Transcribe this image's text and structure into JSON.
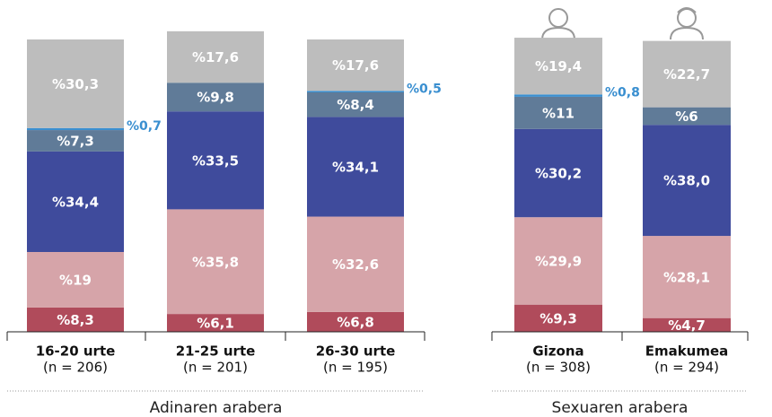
{
  "chart_data": [
    {
      "type": "stacked_bar",
      "group_label": "Adinaren arabera",
      "categories": [
        "16-20 urte",
        "21-25 urte",
        "26-30 urte"
      ],
      "subcategories": [
        "(n = 206)",
        "(n = 201)",
        "(n = 195)"
      ],
      "series": [
        {
          "color": "#b04b5b",
          "values": [
            8.3,
            6.1,
            6.8
          ],
          "value_labels": [
            "%8,3",
            "%6,1",
            "%6,8"
          ]
        },
        {
          "color": "#d6a4a9",
          "values": [
            19,
            35.8,
            32.6
          ],
          "value_labels": [
            "%19",
            "%35,8",
            "%32,6"
          ]
        },
        {
          "color": "#3f4b9c",
          "values": [
            34.4,
            33.5,
            34.1
          ],
          "value_labels": [
            "%34,4",
            "%33,5",
            "%34,1"
          ]
        },
        {
          "color": "#607b98",
          "values": [
            7.3,
            9.8,
            8.4
          ],
          "value_labels": [
            "%7,3",
            "%9,8",
            "%8,4"
          ]
        },
        {
          "color": "#3a8fd0",
          "values": [
            0.7,
            null,
            0.5
          ],
          "value_labels": [
            "%0,7",
            null,
            "%0,5"
          ]
        },
        {
          "color": "#bdbdbd",
          "values": [
            30.3,
            17.6,
            17.6
          ],
          "value_labels": [
            "%30,3",
            "%17,6",
            "%17,6"
          ]
        }
      ]
    },
    {
      "type": "stacked_bar",
      "group_label": "Sexuaren arabera",
      "categories": [
        "Gizona",
        "Emakumea"
      ],
      "subcategories": [
        "(n = 308)",
        "(n = 294)"
      ],
      "series": [
        {
          "color": "#b04b5b",
          "values": [
            9.3,
            4.7
          ],
          "value_labels": [
            "%9,3",
            "%4,7"
          ]
        },
        {
          "color": "#d6a4a9",
          "values": [
            29.9,
            28.1
          ],
          "value_labels": [
            "%29,9",
            "%28,1"
          ]
        },
        {
          "color": "#3f4b9c",
          "values": [
            30.2,
            38.0
          ],
          "value_labels": [
            "%30,2",
            "%38,0"
          ]
        },
        {
          "color": "#607b98",
          "values": [
            11,
            6
          ],
          "value_labels": [
            "%11",
            "%6"
          ]
        },
        {
          "color": "#3a8fd0",
          "values": [
            0.8,
            null
          ],
          "value_labels": [
            "%0,8",
            null
          ]
        },
        {
          "color": "#bdbdbd",
          "values": [
            19.4,
            22.7
          ],
          "value_labels": [
            "%19,4",
            "%22,7"
          ]
        }
      ]
    }
  ]
}
